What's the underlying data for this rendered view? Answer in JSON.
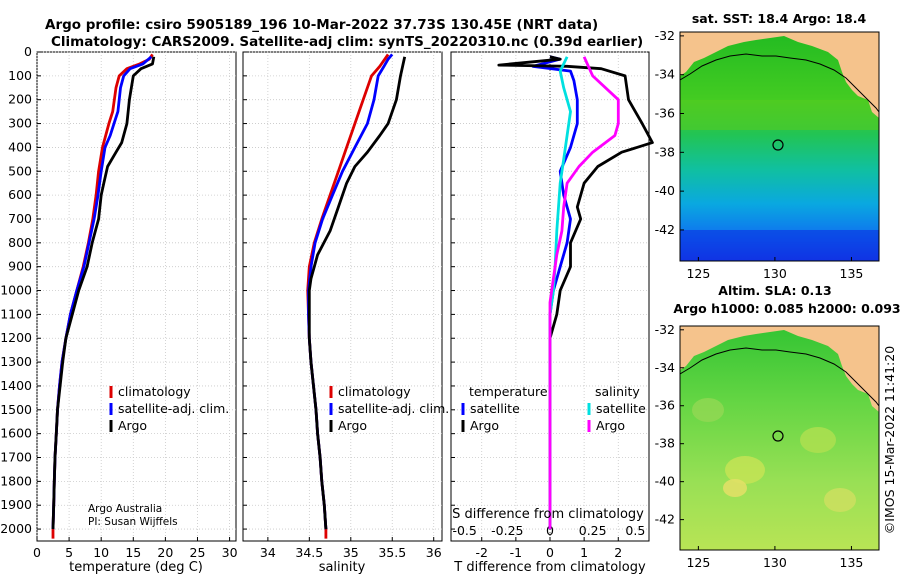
{
  "header": {
    "line1": "Argo profile: csiro 5905189_196 10-Mar-2022 37.73S 130.45E (NRT data)",
    "line2": "Climatology: CARS2009. Satellite-adj clim: synTS_20220310.nc (0.39d earlier)"
  },
  "credit": {
    "line1": "Argo Australia",
    "line2": "PI: Susan Wijffels",
    "imos": "©IMOS 15-Mar-2022 11:41:20"
  },
  "colors": {
    "climatology": "#dd0000",
    "satellite": "#0000ff",
    "argo": "#000000",
    "sal_satellite": "#00e0e0",
    "sal_argo": "#ff00ff",
    "land": "#f5c38c"
  },
  "chart_data": [
    {
      "type": "line",
      "id": "temperature",
      "xlabel": "temperature (deg C)",
      "ylabel": "",
      "xlim": [
        0,
        31
      ],
      "ylim": [
        2050,
        0
      ],
      "xticks": [
        0,
        5,
        10,
        15,
        20,
        25,
        30
      ],
      "yticks": [
        0,
        100,
        200,
        300,
        400,
        500,
        600,
        700,
        800,
        900,
        1000,
        1100,
        1200,
        1300,
        1400,
        1500,
        1600,
        1700,
        1800,
        1900,
        2000
      ],
      "legend": [
        "climatology",
        "satellite-adj. clim.",
        "Argo"
      ],
      "series": [
        {
          "name": "climatology",
          "color": "#dd0000",
          "points": [
            [
              18,
              10
            ],
            [
              17.5,
              30
            ],
            [
              16,
              50
            ],
            [
              14,
              70
            ],
            [
              12.8,
              100
            ],
            [
              12.3,
              150
            ],
            [
              11.8,
              250
            ],
            [
              11.2,
              300
            ],
            [
              10.7,
              350
            ],
            [
              10.2,
              400
            ],
            [
              9.6,
              500
            ],
            [
              9.2,
              600
            ],
            [
              8.7,
              700
            ],
            [
              8,
              800
            ],
            [
              7.2,
              900
            ],
            [
              6.2,
              1000
            ],
            [
              5.2,
              1100
            ],
            [
              4.5,
              1200
            ],
            [
              3.9,
              1300
            ],
            [
              3.5,
              1400
            ],
            [
              3.2,
              1500
            ],
            [
              3,
              1600
            ],
            [
              2.8,
              1700
            ],
            [
              2.7,
              1800
            ],
            [
              2.6,
              1900
            ],
            [
              2.5,
              2000
            ],
            [
              2.5,
              2040
            ]
          ]
        },
        {
          "name": "satellite-adj. clim.",
          "color": "#0000ff",
          "points": [
            [
              17.8,
              20
            ],
            [
              16.5,
              50
            ],
            [
              14.5,
              70
            ],
            [
              13.5,
              100
            ],
            [
              13,
              150
            ],
            [
              12.6,
              250
            ],
            [
              12,
              300
            ],
            [
              11.4,
              350
            ],
            [
              10.6,
              400
            ],
            [
              10,
              500
            ],
            [
              9.5,
              600
            ],
            [
              8.9,
              700
            ],
            [
              8.1,
              800
            ],
            [
              7.3,
              900
            ],
            [
              6.2,
              1000
            ],
            [
              5.2,
              1100
            ],
            [
              4.5,
              1200
            ],
            [
              3.9,
              1300
            ],
            [
              3.5,
              1400
            ],
            [
              3.2,
              1500
            ],
            [
              3,
              1600
            ],
            [
              2.8,
              1700
            ],
            [
              2.7,
              1800
            ],
            [
              2.6,
              1900
            ],
            [
              2.5,
              2000
            ]
          ]
        },
        {
          "name": "Argo",
          "color": "#000000",
          "points": [
            [
              18.2,
              20
            ],
            [
              18,
              50
            ],
            [
              16.2,
              70
            ],
            [
              15,
              100
            ],
            [
              14.4,
              200
            ],
            [
              14,
              300
            ],
            [
              13.2,
              380
            ],
            [
              12.3,
              420
            ],
            [
              11,
              480
            ],
            [
              10.4,
              550
            ],
            [
              10,
              600
            ],
            [
              9.6,
              700
            ],
            [
              8.6,
              800
            ],
            [
              7.8,
              900
            ],
            [
              6.5,
              1000
            ],
            [
              5.5,
              1100
            ],
            [
              4.5,
              1200
            ],
            [
              4,
              1300
            ],
            [
              3.6,
              1400
            ],
            [
              3.2,
              1500
            ],
            [
              3,
              1600
            ],
            [
              2.8,
              1700
            ],
            [
              2.7,
              1800
            ],
            [
              2.6,
              1900
            ],
            [
              2.5,
              2000
            ]
          ]
        }
      ]
    },
    {
      "type": "line",
      "id": "salinity",
      "xlabel": "salinity",
      "ylabel": "",
      "xlim": [
        33.7,
        36.1
      ],
      "ylim": [
        2050,
        0
      ],
      "xticks": [
        34,
        34.5,
        35,
        35.5,
        36
      ],
      "xticklabels": [
        "34",
        "34.5",
        "35",
        "35.5",
        "36"
      ],
      "legend": [
        "climatology",
        "satellite-adj. clim.",
        "Argo"
      ],
      "series": [
        {
          "name": "climatology",
          "color": "#dd0000",
          "points": [
            [
              35.45,
              10
            ],
            [
              35.35,
              60
            ],
            [
              35.25,
              100
            ],
            [
              35.15,
              200
            ],
            [
              35.05,
              300
            ],
            [
              34.95,
              400
            ],
            [
              34.85,
              500
            ],
            [
              34.75,
              600
            ],
            [
              34.65,
              700
            ],
            [
              34.56,
              800
            ],
            [
              34.5,
              900
            ],
            [
              34.48,
              1000
            ],
            [
              34.49,
              1100
            ],
            [
              34.5,
              1200
            ],
            [
              34.52,
              1300
            ],
            [
              34.55,
              1400
            ],
            [
              34.58,
              1500
            ],
            [
              34.6,
              1600
            ],
            [
              34.63,
              1700
            ],
            [
              34.65,
              1800
            ],
            [
              34.68,
              1900
            ],
            [
              34.7,
              2000
            ],
            [
              34.7,
              2040
            ]
          ]
        },
        {
          "name": "satellite-adj. clim.",
          "color": "#0000ff",
          "points": [
            [
              35.5,
              10
            ],
            [
              35.45,
              30
            ],
            [
              35.4,
              60
            ],
            [
              35.33,
              100
            ],
            [
              35.28,
              200
            ],
            [
              35.2,
              300
            ],
            [
              35.05,
              400
            ],
            [
              34.9,
              500
            ],
            [
              34.78,
              600
            ],
            [
              34.66,
              700
            ],
            [
              34.57,
              800
            ],
            [
              34.52,
              900
            ],
            [
              34.49,
              1000
            ],
            [
              34.49,
              1100
            ],
            [
              34.5,
              1200
            ],
            [
              34.52,
              1300
            ],
            [
              34.55,
              1400
            ],
            [
              34.58,
              1500
            ],
            [
              34.6,
              1600
            ],
            [
              34.63,
              1700
            ],
            [
              34.65,
              1800
            ],
            [
              34.68,
              1900
            ],
            [
              34.7,
              2000
            ]
          ]
        },
        {
          "name": "Argo",
          "color": "#000000",
          "points": [
            [
              35.65,
              20
            ],
            [
              35.6,
              100
            ],
            [
              35.55,
              200
            ],
            [
              35.45,
              300
            ],
            [
              35.35,
              350
            ],
            [
              35.2,
              420
            ],
            [
              35.05,
              480
            ],
            [
              34.95,
              550
            ],
            [
              34.85,
              650
            ],
            [
              34.75,
              750
            ],
            [
              34.6,
              850
            ],
            [
              34.52,
              950
            ],
            [
              34.5,
              1000
            ],
            [
              34.5,
              1100
            ],
            [
              34.5,
              1200
            ],
            [
              34.52,
              1300
            ],
            [
              34.55,
              1400
            ],
            [
              34.58,
              1500
            ],
            [
              34.6,
              1600
            ],
            [
              34.63,
              1700
            ],
            [
              34.65,
              1800
            ],
            [
              34.68,
              1900
            ],
            [
              34.7,
              2000
            ]
          ]
        }
      ]
    },
    {
      "type": "line",
      "id": "difference",
      "xlabel": "T difference from climatology",
      "xlabel_top": "S difference from climatology",
      "ylabel": "",
      "xlim": [
        -2.9,
        2.9
      ],
      "ylim": [
        2050,
        0
      ],
      "xticks": [
        -2,
        -1,
        0,
        1,
        2
      ],
      "s_xticks": [
        -0.5,
        -0.25,
        0,
        0.25,
        0.5
      ],
      "s_xticklabels": [
        "-0.5",
        "-0.25",
        "0",
        "0.25",
        "0.5"
      ],
      "legend": {
        "t_heading": "temperature",
        "s_heading": "salinity",
        "t_entries": [
          "satellite",
          "Argo"
        ],
        "s_entries": [
          "satellite",
          "Argo"
        ]
      },
      "series": [
        {
          "name": "T satellite",
          "color": "#0000ff",
          "points": [
            [
              0,
              20
            ],
            [
              0.3,
              30
            ],
            [
              -0.5,
              60
            ],
            [
              0.6,
              80
            ],
            [
              0.7,
              120
            ],
            [
              0.8,
              200
            ],
            [
              0.8,
              300
            ],
            [
              0.6,
              400
            ],
            [
              0.3,
              500
            ],
            [
              0.4,
              600
            ],
            [
              0.6,
              700
            ],
            [
              0.5,
              800
            ],
            [
              0.3,
              900
            ],
            [
              0.1,
              1000
            ],
            [
              0,
              1100
            ],
            [
              0,
              2000
            ]
          ]
        },
        {
          "name": "T Argo",
          "color": "#000000",
          "points": [
            [
              0,
              20
            ],
            [
              0.3,
              30
            ],
            [
              -1.5,
              55
            ],
            [
              0.5,
              60
            ],
            [
              1.5,
              70
            ],
            [
              2.2,
              100
            ],
            [
              2.3,
              200
            ],
            [
              2.7,
              300
            ],
            [
              3,
              380
            ],
            [
              2.1,
              420
            ],
            [
              1.4,
              480
            ],
            [
              1,
              550
            ],
            [
              0.8,
              650
            ],
            [
              0.9,
              700
            ],
            [
              0.6,
              800
            ],
            [
              0.6,
              900
            ],
            [
              0.3,
              1000
            ],
            [
              0.2,
              1100
            ],
            [
              0,
              1200
            ],
            [
              0,
              2000
            ]
          ]
        },
        {
          "name": "S satellite",
          "color": "#00e0e0",
          "axis": "S",
          "points": [
            [
              0.1,
              20
            ],
            [
              0.06,
              80
            ],
            [
              0.08,
              150
            ],
            [
              0.12,
              250
            ],
            [
              0.1,
              350
            ],
            [
              0.08,
              450
            ],
            [
              0.06,
              550
            ],
            [
              0.05,
              650
            ],
            [
              0.04,
              750
            ],
            [
              0.03,
              900
            ],
            [
              0.02,
              1000
            ],
            [
              0,
              1100
            ],
            [
              0,
              2000
            ]
          ]
        },
        {
          "name": "S Argo",
          "color": "#ff00ff",
          "axis": "S",
          "points": [
            [
              0.2,
              20
            ],
            [
              0.25,
              100
            ],
            [
              0.4,
              200
            ],
            [
              0.4,
              300
            ],
            [
              0.38,
              350
            ],
            [
              0.25,
              420
            ],
            [
              0.17,
              480
            ],
            [
              0.1,
              550
            ],
            [
              0.08,
              650
            ],
            [
              0.07,
              750
            ],
            [
              0.04,
              850
            ],
            [
              0.02,
              950
            ],
            [
              0,
              1050
            ],
            [
              0,
              2000
            ]
          ]
        }
      ]
    }
  ],
  "maps": {
    "sst": {
      "title": "sat. SST: 18.4 Argo: 18.4",
      "yticks": [
        -32,
        -34,
        -36,
        -38,
        -40,
        -42
      ],
      "yticklabels": [
        "-32",
        "-34",
        "-36",
        "-38",
        "-40",
        "-42"
      ],
      "xticks": [
        125,
        130,
        135
      ],
      "xticklabels": [
        "125",
        "130",
        "135"
      ],
      "lon_range": [
        123.8,
        136.8
      ],
      "lat_range": [
        -43.6,
        -31.8
      ],
      "float_position": {
        "lon": 130.45,
        "lat": -37.73
      }
    },
    "sla": {
      "title_line1": "Altim. SLA: 0.13",
      "title_line2": "Argo h1000: 0.085 h2000: 0.093",
      "yticks": [
        -32,
        -34,
        -36,
        -38,
        -40,
        -42
      ],
      "yticklabels": [
        "-32",
        "-34",
        "-36",
        "-38",
        "-40",
        "-42"
      ],
      "xticks": [
        125,
        130,
        135
      ],
      "xticklabels": [
        "125",
        "130",
        "135"
      ],
      "lon_range": [
        123.8,
        136.8
      ],
      "lat_range": [
        -43.6,
        -31.8
      ],
      "float_position": {
        "lon": 130.45,
        "lat": -37.73
      }
    }
  }
}
